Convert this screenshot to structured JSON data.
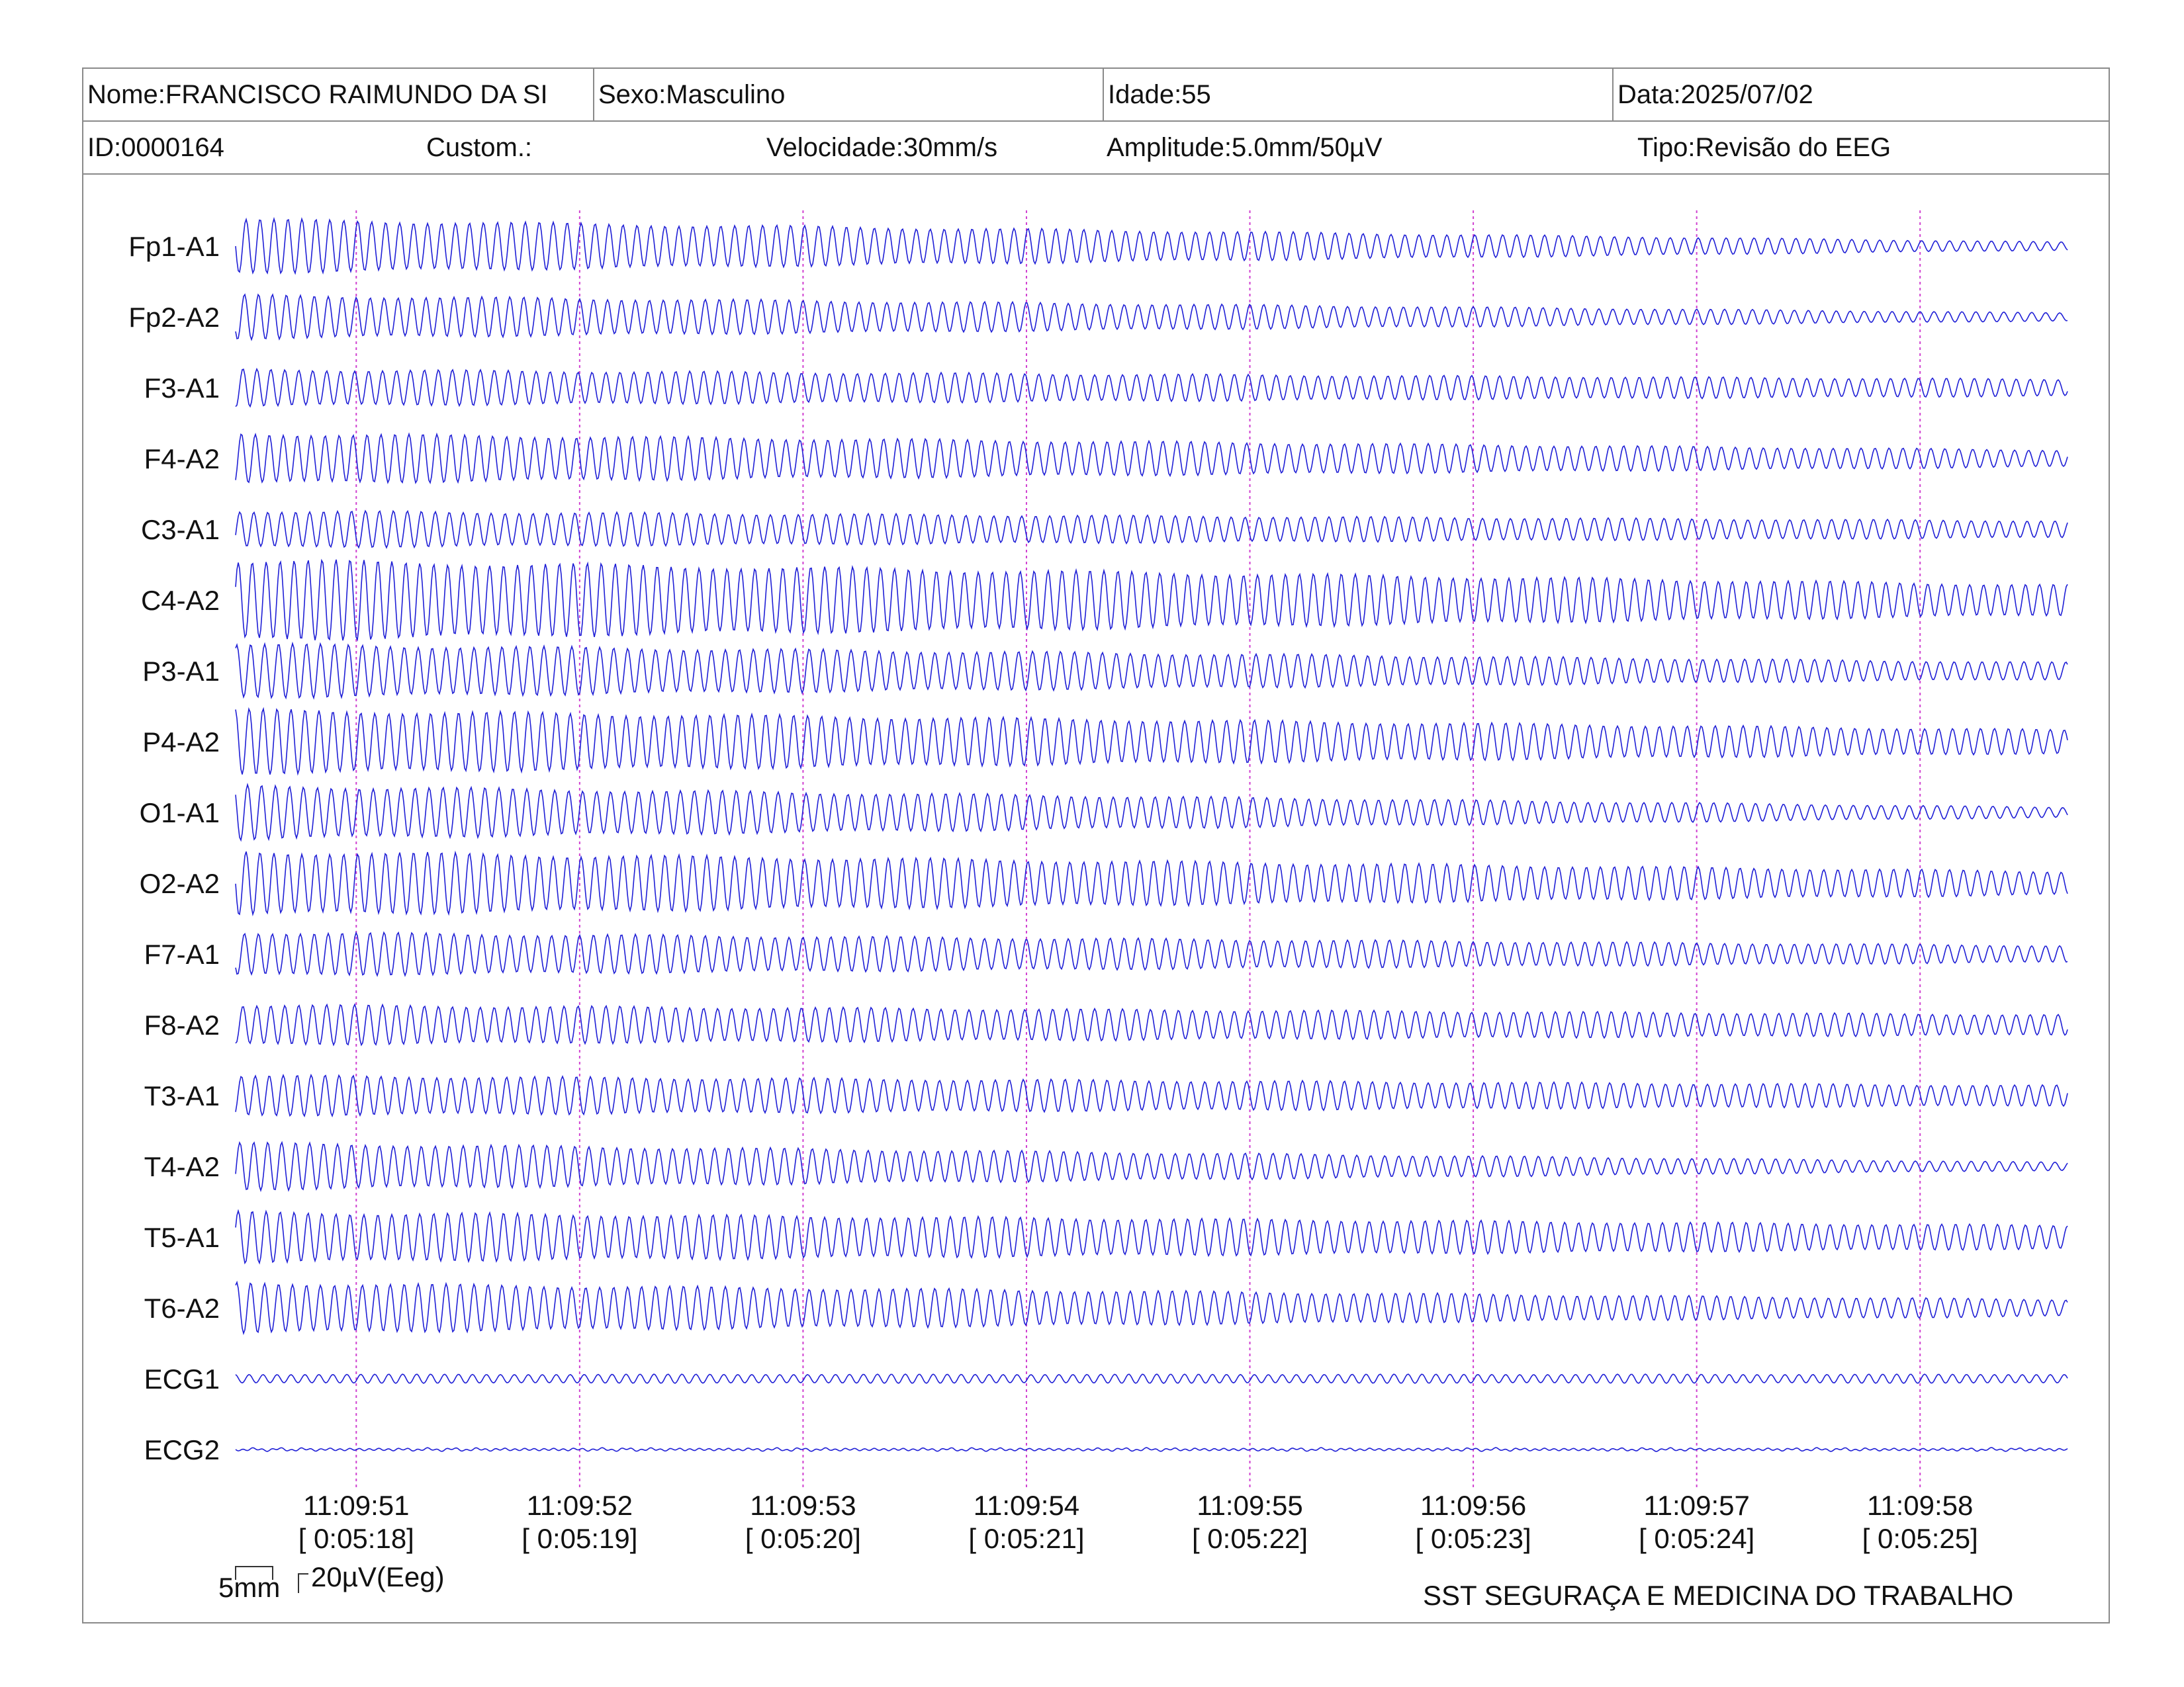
{
  "header": {
    "row1": {
      "nome": "Nome:FRANCISCO RAIMUNDO DA SI",
      "sexo": "Sexo:Masculino",
      "idade": "Idade:55",
      "data": "Data:2025/07/02"
    },
    "row2": {
      "id": "ID:0000164",
      "custom": "Custom.:",
      "velocidade": "Velocidade:30mm/s",
      "amplitude": "Amplitude:5.0mm/50µV",
      "tipo": "Tipo:Revisão do EEG"
    }
  },
  "colors": {
    "trace": "#1f1fd6",
    "time_marker": "#d040d0",
    "border": "#8a8a8a"
  },
  "chart_data": {
    "type": "line",
    "channels": [
      "Fp1-A1",
      "Fp2-A2",
      "F3-A1",
      "F4-A2",
      "C3-A1",
      "C4-A2",
      "P3-A1",
      "P4-A2",
      "O1-A1",
      "O2-A2",
      "F7-A1",
      "F8-A2",
      "T3-A1",
      "T4-A2",
      "T5-A1",
      "T6-A2",
      "ECG1",
      "ECG2"
    ],
    "time_ticks": [
      {
        "clock": "11:09:51",
        "elapsed": "[ 0:05:18]"
      },
      {
        "clock": "11:09:52",
        "elapsed": "[ 0:05:19]"
      },
      {
        "clock": "11:09:53",
        "elapsed": "[ 0:05:20]"
      },
      {
        "clock": "11:09:54",
        "elapsed": "[ 0:05:21]"
      },
      {
        "clock": "11:09:55",
        "elapsed": "[ 0:05:22]"
      },
      {
        "clock": "11:09:56",
        "elapsed": "[ 0:05:23]"
      },
      {
        "clock": "11:09:57",
        "elapsed": "[ 0:05:24]"
      },
      {
        "clock": "11:09:58",
        "elapsed": "[ 0:05:25]"
      }
    ],
    "window_seconds": 8.2,
    "oscillation_cycles_per_second": 16,
    "channel_amplitude_start_uv": [
      80,
      65,
      55,
      75,
      55,
      120,
      80,
      95,
      80,
      95,
      65,
      60,
      60,
      70,
      75,
      75,
      13,
      3
    ],
    "channel_amplitude_end_uv": [
      12,
      12,
      25,
      25,
      25,
      45,
      25,
      35,
      15,
      35,
      25,
      30,
      30,
      12,
      35,
      25,
      13,
      3
    ]
  },
  "scale": {
    "time_label": "5mm",
    "amplitude_label": "20µV(Eeg)"
  },
  "footer": {
    "organization": "SST SEGURAÇA E MEDICINA DO TRABALHO"
  }
}
